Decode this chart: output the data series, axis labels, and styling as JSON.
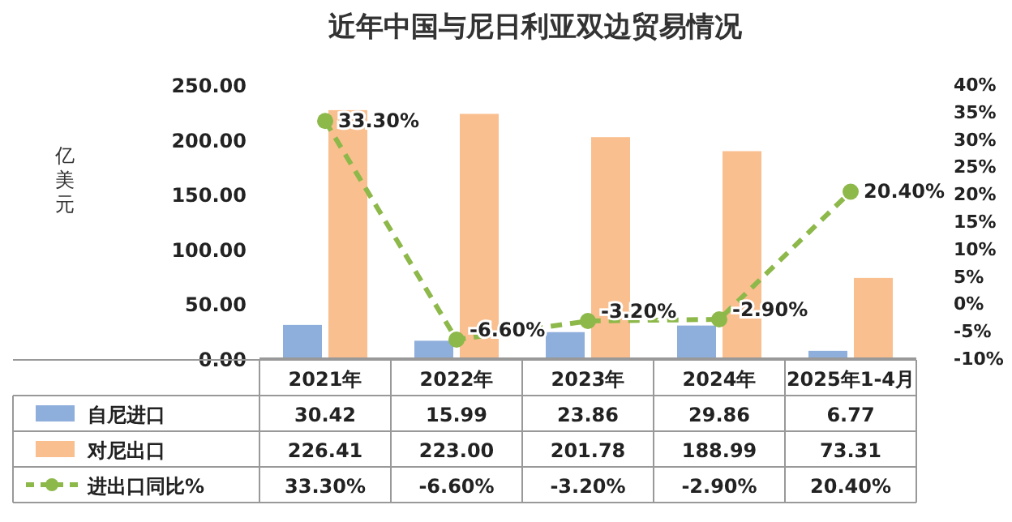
{
  "chart_data": {
    "type": "bar",
    "title": "近年中国与尼日利亚双边贸易情况",
    "ylabel": "亿美元",
    "categories": [
      "2021年",
      "2022年",
      "2023年",
      "2024年",
      "2025年1-4月"
    ],
    "series": [
      {
        "name": "自尼进口",
        "color": "#8eaedb",
        "values": [
          30.42,
          15.99,
          23.86,
          29.86,
          6.77
        ],
        "value_labels": [
          "30.42",
          "15.99",
          "23.86",
          "29.86",
          "6.77"
        ]
      },
      {
        "name": "对尼出口",
        "color": "#f9bf8f",
        "values": [
          226.41,
          223.0,
          201.78,
          188.99,
          73.31
        ],
        "value_labels": [
          "226.41",
          "223.00",
          "201.78",
          "188.99",
          "73.31"
        ]
      },
      {
        "name": "进出口同比%",
        "type": "line",
        "axis": "y2",
        "color": "#8db84a",
        "marker": "circle",
        "line_style": "dashed",
        "values": [
          33.3,
          -6.6,
          -3.2,
          -2.9,
          20.4
        ],
        "value_labels": [
          "33.30%",
          "-6.60%",
          "-3.20%",
          "-2.90%",
          "20.40%"
        ]
      }
    ],
    "ylim": [
      0,
      250
    ],
    "yticks": [
      {
        "value": 0,
        "label": "0.00"
      },
      {
        "value": 50,
        "label": "50.00"
      },
      {
        "value": 100,
        "label": "100.00"
      },
      {
        "value": 150,
        "label": "150.00"
      },
      {
        "value": 200,
        "label": "200.00"
      },
      {
        "value": 250,
        "label": "250.00"
      }
    ],
    "y2lim": [
      -10,
      40
    ],
    "y2ticks": [
      {
        "value": -10,
        "label": "-10%"
      },
      {
        "value": -5,
        "label": "-5%"
      },
      {
        "value": 0,
        "label": "0%"
      },
      {
        "value": 5,
        "label": "5%"
      },
      {
        "value": 10,
        "label": "10%"
      },
      {
        "value": 15,
        "label": "15%"
      },
      {
        "value": 20,
        "label": "20%"
      },
      {
        "value": 25,
        "label": "25%"
      },
      {
        "value": 30,
        "label": "30%"
      },
      {
        "value": 35,
        "label": "35%"
      },
      {
        "value": 40,
        "label": "40%"
      }
    ],
    "legend": "bottom",
    "grid": false
  }
}
